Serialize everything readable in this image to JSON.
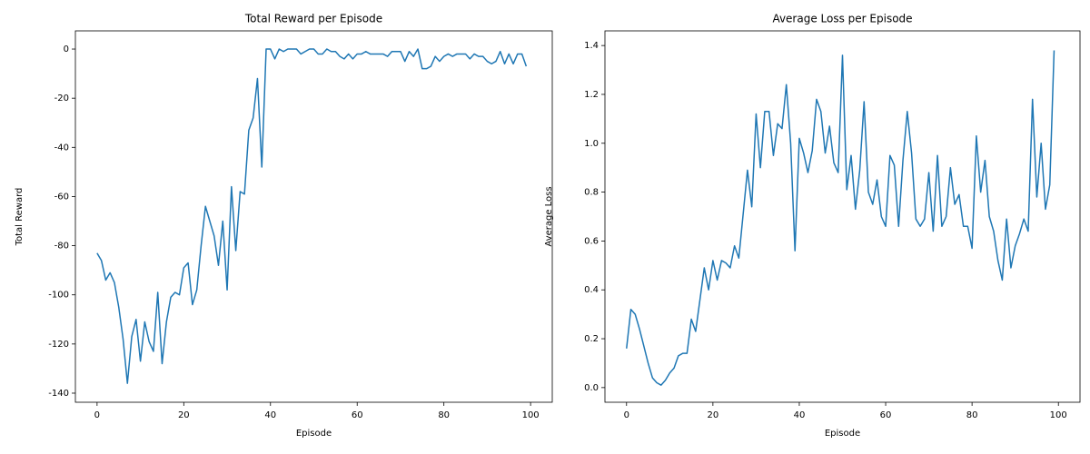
{
  "chart_data": [
    {
      "type": "line",
      "title": "Total Reward per Episode",
      "xlabel": "Episode",
      "ylabel": "Total Reward",
      "color": "#1f77b4",
      "x": [
        0,
        1,
        2,
        3,
        4,
        5,
        6,
        7,
        8,
        9,
        10,
        11,
        12,
        13,
        14,
        15,
        16,
        17,
        18,
        19,
        20,
        21,
        22,
        23,
        24,
        25,
        26,
        27,
        28,
        29,
        30,
        31,
        32,
        33,
        34,
        35,
        36,
        37,
        38,
        39,
        40,
        41,
        42,
        43,
        44,
        45,
        46,
        47,
        48,
        49,
        50,
        51,
        52,
        53,
        54,
        55,
        56,
        57,
        58,
        59,
        60,
        61,
        62,
        63,
        64,
        65,
        66,
        67,
        68,
        69,
        70,
        71,
        72,
        73,
        74,
        75,
        76,
        77,
        78,
        79,
        80,
        81,
        82,
        83,
        84,
        85,
        86,
        87,
        88,
        89,
        90,
        91,
        92,
        93,
        94,
        95,
        96,
        97,
        98,
        99
      ],
      "values": [
        -83,
        -86,
        -94,
        -91,
        -95,
        -105,
        -118,
        -136,
        -117,
        -110,
        -127,
        -111,
        -119,
        -123,
        -99,
        -128,
        -111,
        -101,
        -99,
        -100,
        -89,
        -87,
        -104,
        -98,
        -80,
        -64,
        -70,
        -76,
        -88,
        -70,
        -98,
        -56,
        -82,
        -58,
        -59,
        -33,
        -28,
        -12,
        -48,
        0,
        0,
        -4,
        0,
        -1,
        0,
        0,
        0,
        -2,
        -1,
        0,
        0,
        -2,
        -2,
        0,
        -1,
        -1,
        -3,
        -4,
        -2,
        -4,
        -2,
        -2,
        -1,
        -2,
        -2,
        -2,
        -2,
        -3,
        -1,
        -1,
        -1,
        -5,
        -1,
        -3,
        0,
        -8,
        -8,
        -7,
        -3,
        -5,
        -3,
        -2,
        -3,
        -2,
        -2,
        -2,
        -4,
        -2,
        -3,
        -3,
        -5,
        -6,
        -5,
        -1,
        -6,
        -2,
        -6,
        -2,
        -2,
        -7
      ],
      "xlim": [
        -5,
        105
      ],
      "ylim": [
        -143.7,
        7.4
      ],
      "xticks": [
        0,
        20,
        40,
        60,
        80,
        100
      ],
      "yticks": [
        -140,
        -120,
        -100,
        -80,
        -60,
        -40,
        -20,
        0
      ],
      "grid": false
    },
    {
      "type": "line",
      "title": "Average Loss per Episode",
      "xlabel": "Episode",
      "ylabel": "Average Loss",
      "color": "#1f77b4",
      "x": [
        0,
        1,
        2,
        3,
        4,
        5,
        6,
        7,
        8,
        9,
        10,
        11,
        12,
        13,
        14,
        15,
        16,
        17,
        18,
        19,
        20,
        21,
        22,
        23,
        24,
        25,
        26,
        27,
        28,
        29,
        30,
        31,
        32,
        33,
        34,
        35,
        36,
        37,
        38,
        39,
        40,
        41,
        42,
        43,
        44,
        45,
        46,
        47,
        48,
        49,
        50,
        51,
        52,
        53,
        54,
        55,
        56,
        57,
        58,
        59,
        60,
        61,
        62,
        63,
        64,
        65,
        66,
        67,
        68,
        69,
        70,
        71,
        72,
        73,
        74,
        75,
        76,
        77,
        78,
        79,
        80,
        81,
        82,
        83,
        84,
        85,
        86,
        87,
        88,
        89,
        90,
        91,
        92,
        93,
        94,
        95,
        96,
        97,
        98,
        99
      ],
      "values": [
        0.16,
        0.32,
        0.3,
        0.24,
        0.17,
        0.1,
        0.04,
        0.02,
        0.01,
        0.03,
        0.06,
        0.08,
        0.13,
        0.14,
        0.14,
        0.28,
        0.23,
        0.36,
        0.49,
        0.4,
        0.52,
        0.44,
        0.52,
        0.51,
        0.49,
        0.58,
        0.53,
        0.71,
        0.89,
        0.74,
        1.12,
        0.9,
        1.13,
        1.13,
        0.95,
        1.08,
        1.06,
        1.24,
        1.0,
        0.56,
        1.02,
        0.96,
        0.88,
        0.97,
        1.18,
        1.13,
        0.96,
        1.07,
        0.92,
        0.88,
        1.36,
        0.81,
        0.95,
        0.73,
        0.89,
        1.17,
        0.8,
        0.75,
        0.85,
        0.7,
        0.66,
        0.95,
        0.91,
        0.66,
        0.93,
        1.13,
        0.96,
        0.69,
        0.66,
        0.69,
        0.88,
        0.64,
        0.95,
        0.66,
        0.7,
        0.9,
        0.75,
        0.79,
        0.66,
        0.66,
        0.57,
        1.03,
        0.8,
        0.93,
        0.7,
        0.64,
        0.52,
        0.44,
        0.69,
        0.49,
        0.58,
        0.63,
        0.69,
        0.64,
        1.18,
        0.78,
        1.0,
        0.73,
        0.83,
        1.38
      ],
      "xlim": [
        -5,
        105
      ],
      "ylim": [
        -0.06,
        1.46
      ],
      "xticks": [
        0,
        20,
        40,
        60,
        80,
        100
      ],
      "yticks": [
        {
          "value": 0,
          "label": "0.0"
        },
        {
          "value": 0.2,
          "label": "0.2"
        },
        {
          "value": 0.4,
          "label": "0.4"
        },
        {
          "value": 0.6,
          "label": "0.6"
        },
        {
          "value": 0.8,
          "label": "0.8"
        },
        {
          "value": 1.0,
          "label": "1.0"
        },
        {
          "value": 1.2,
          "label": "1.2"
        },
        {
          "value": 1.4,
          "label": "1.4"
        }
      ],
      "grid": false
    }
  ]
}
